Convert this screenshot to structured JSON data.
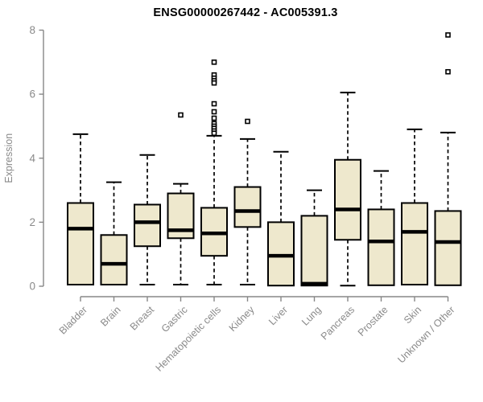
{
  "chart_data": {
    "type": "boxplot",
    "title": "ENSG00000267442 - AC005391.3",
    "ylabel": "Expression",
    "xlabel": "",
    "ylim": [
      0,
      8
    ],
    "yticks": [
      0,
      2,
      4,
      6,
      8
    ],
    "grid": false,
    "legend": "none",
    "colors": {
      "box_fill": "#EEE8CD",
      "box_stroke": "#000000",
      "median": "#000000",
      "whisker": "#000000",
      "outlier_stroke": "#000000",
      "outlier_fill": "#ffffff",
      "axis": "#878787",
      "axis_text": "#8a8a8a",
      "title_text": "#000000"
    },
    "categories": [
      "Bladder",
      "Brain",
      "Breast",
      "Gastric",
      "Hematopoietic cells",
      "Kidney",
      "Liver",
      "Lung",
      "Pancreas",
      "Prostate",
      "Skin",
      "Unknown / Other"
    ],
    "series": [
      {
        "category": "Bladder",
        "whisker_low": null,
        "q1": 0.05,
        "median": 1.8,
        "q3": 2.6,
        "whisker_high": 4.75,
        "outliers": []
      },
      {
        "category": "Brain",
        "whisker_low": null,
        "q1": 0.05,
        "median": 0.7,
        "q3": 1.6,
        "whisker_high": 3.25,
        "outliers": []
      },
      {
        "category": "Breast",
        "whisker_low": 0.05,
        "q1": 1.25,
        "median": 2.0,
        "q3": 2.55,
        "whisker_high": 4.1,
        "outliers": []
      },
      {
        "category": "Gastric",
        "whisker_low": 0.05,
        "q1": 1.5,
        "median": 1.75,
        "q3": 2.9,
        "whisker_high": 3.2,
        "outliers": [
          5.35
        ]
      },
      {
        "category": "Hematopoietic cells",
        "whisker_low": 0.05,
        "q1": 0.95,
        "median": 1.65,
        "q3": 2.45,
        "whisker_high": 4.7,
        "outliers": [
          7.0,
          6.6,
          6.5,
          6.42,
          6.35,
          5.7,
          5.45,
          5.25,
          5.08,
          5.0,
          4.93,
          4.85,
          4.78
        ]
      },
      {
        "category": "Kidney",
        "whisker_low": 0.05,
        "q1": 1.85,
        "median": 2.35,
        "q3": 3.1,
        "whisker_high": 4.6,
        "outliers": [
          5.15
        ]
      },
      {
        "category": "Liver",
        "whisker_low": null,
        "q1": 0.02,
        "median": 0.95,
        "q3": 2.0,
        "whisker_high": 4.2,
        "outliers": []
      },
      {
        "category": "Lung",
        "whisker_low": null,
        "q1": 0.02,
        "median": 0.08,
        "q3": 2.2,
        "whisker_high": 3.0,
        "outliers": []
      },
      {
        "category": "Pancreas",
        "whisker_low": 0.02,
        "q1": 1.45,
        "median": 2.4,
        "q3": 3.95,
        "whisker_high": 6.05,
        "outliers": []
      },
      {
        "category": "Prostate",
        "whisker_low": null,
        "q1": 0.03,
        "median": 1.4,
        "q3": 2.4,
        "whisker_high": 3.6,
        "outliers": []
      },
      {
        "category": "Skin",
        "whisker_low": null,
        "q1": 0.05,
        "median": 1.7,
        "q3": 2.6,
        "whisker_high": 4.9,
        "outliers": []
      },
      {
        "category": "Unknown / Other",
        "whisker_low": null,
        "q1": 0.03,
        "median": 1.38,
        "q3": 2.35,
        "whisker_high": 4.8,
        "outliers": [
          7.85,
          6.7
        ]
      }
    ]
  }
}
